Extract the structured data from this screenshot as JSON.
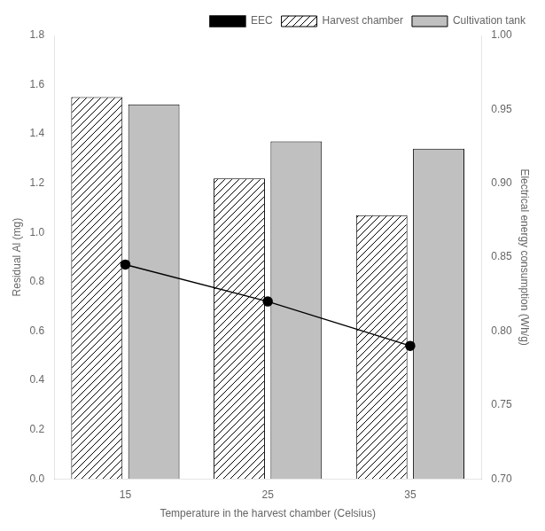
{
  "chart_data": {
    "type": "bar",
    "categories": [
      "15",
      "25",
      "35"
    ],
    "series": [
      {
        "name": "Harvest chamber",
        "color": "white",
        "values": [
          1.55,
          1.22,
          1.07
        ]
      },
      {
        "name": "Cultivation tank",
        "color": "#c0c0c0",
        "values": [
          1.52,
          1.37,
          1.34
        ]
      },
      {
        "name": "EEC",
        "type": "line",
        "axis": "y2",
        "color": "black",
        "marker": "circle",
        "line_style": "solid",
        "values": [
          0.845,
          0.82,
          0.79
        ]
      }
    ],
    "xlabel": "Temperature in the harvest chamber (Celsius)",
    "ylabel": "Residual Al (mg)",
    "y2label": "Electrical energy consumption (Wh/g)",
    "ylim": [
      0.0,
      1.8
    ],
    "yticks": [
      {
        "value": 0.0,
        "label": "0.0"
      },
      0.2,
      0.4,
      0.6,
      0.8,
      {
        "value": 1.0,
        "label": "1.0"
      },
      1.2,
      1.4,
      1.6,
      1.8
    ],
    "y2lim": [
      0.7,
      1.0
    ],
    "y2ticks": [
      {
        "value": 0.7,
        "label": "0.70"
      },
      0.75,
      {
        "value": 0.8,
        "label": "0.80"
      },
      0.85,
      {
        "value": 0.9,
        "label": "0.90"
      },
      0.95,
      {
        "value": 1.0,
        "label": "1.00"
      }
    ],
    "grid": false,
    "legend": "upper right"
  }
}
